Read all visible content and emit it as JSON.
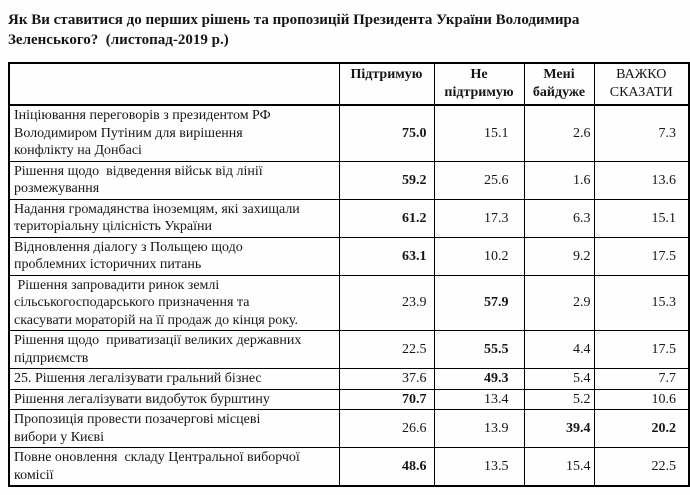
{
  "title": "Як Ви ставитися до перших рішень та пропозицій Президента України Володимира Зеленського?  (листопад-2019 р.)",
  "table": {
    "headers": [
      {
        "label": "",
        "bold": false
      },
      {
        "label": "Підтримую",
        "bold": true
      },
      {
        "label": "Не підтримую",
        "bold": true
      },
      {
        "label": "Мені байдуже",
        "bold": true
      },
      {
        "label": "ВАЖКО СКАЗАТИ",
        "bold": false
      }
    ],
    "rows": [
      {
        "label": "Ініціювання переговорів з президентом РФ Володимиром Путіним для вирішення конфлікту на Донбасі",
        "values": [
          "75.0",
          "15.1",
          "2.6",
          "7.3"
        ],
        "bold": [
          true,
          false,
          false,
          false
        ]
      },
      {
        "label": "Рішення щодо  відведення військ від лінії розмежування",
        "values": [
          "59.2",
          "25.6",
          "1.6",
          "13.6"
        ],
        "bold": [
          true,
          false,
          false,
          false
        ]
      },
      {
        "label": "Надання громадянства іноземцям, які захищали територіальну цілісність України",
        "values": [
          "61.2",
          "17.3",
          "6.3",
          "15.1"
        ],
        "bold": [
          true,
          false,
          false,
          false
        ]
      },
      {
        "label": "Відновлення діалогу з Польщею щодо проблемних історичних питань",
        "values": [
          "63.1",
          "10.2",
          "9.2",
          "17.5"
        ],
        "bold": [
          true,
          false,
          false,
          false
        ]
      },
      {
        "label": " Рішення запровадити ринок землі сільськогосподарського призначення та скасувати мораторій на її продаж до кінця року.",
        "values": [
          "23.9",
          "57.9",
          "2.9",
          "15.3"
        ],
        "bold": [
          false,
          true,
          false,
          false
        ]
      },
      {
        "label": "Рішення щодо  приватизації великих державних підприємств",
        "values": [
          "22.5",
          "55.5",
          "4.4",
          "17.5"
        ],
        "bold": [
          false,
          true,
          false,
          false
        ]
      },
      {
        "label": "25. Рішення легалізувати гральний бізнес",
        "values": [
          "37.6",
          "49.3",
          "5.4",
          "7.7"
        ],
        "bold": [
          false,
          true,
          false,
          false
        ]
      },
      {
        "label": "Рішення легалізувати видобуток бурштину",
        "values": [
          "70.7",
          "13.4",
          "5.2",
          "10.6"
        ],
        "bold": [
          true,
          false,
          false,
          false
        ]
      },
      {
        "label": "Пропозиція провести позачергові місцеві вибори у Києві",
        "values": [
          "26.6",
          "13.9",
          "39.4",
          "20.2"
        ],
        "bold": [
          false,
          false,
          true,
          true
        ]
      },
      {
        "label": "Повне оновлення  складу Центральної виборчої комісії",
        "values": [
          "48.6",
          "13.5",
          "15.4",
          "22.5"
        ],
        "bold": [
          true,
          false,
          false,
          false
        ]
      }
    ]
  },
  "colors": {
    "text": "#161616",
    "border": "#000000",
    "background": "#fefefe"
  }
}
